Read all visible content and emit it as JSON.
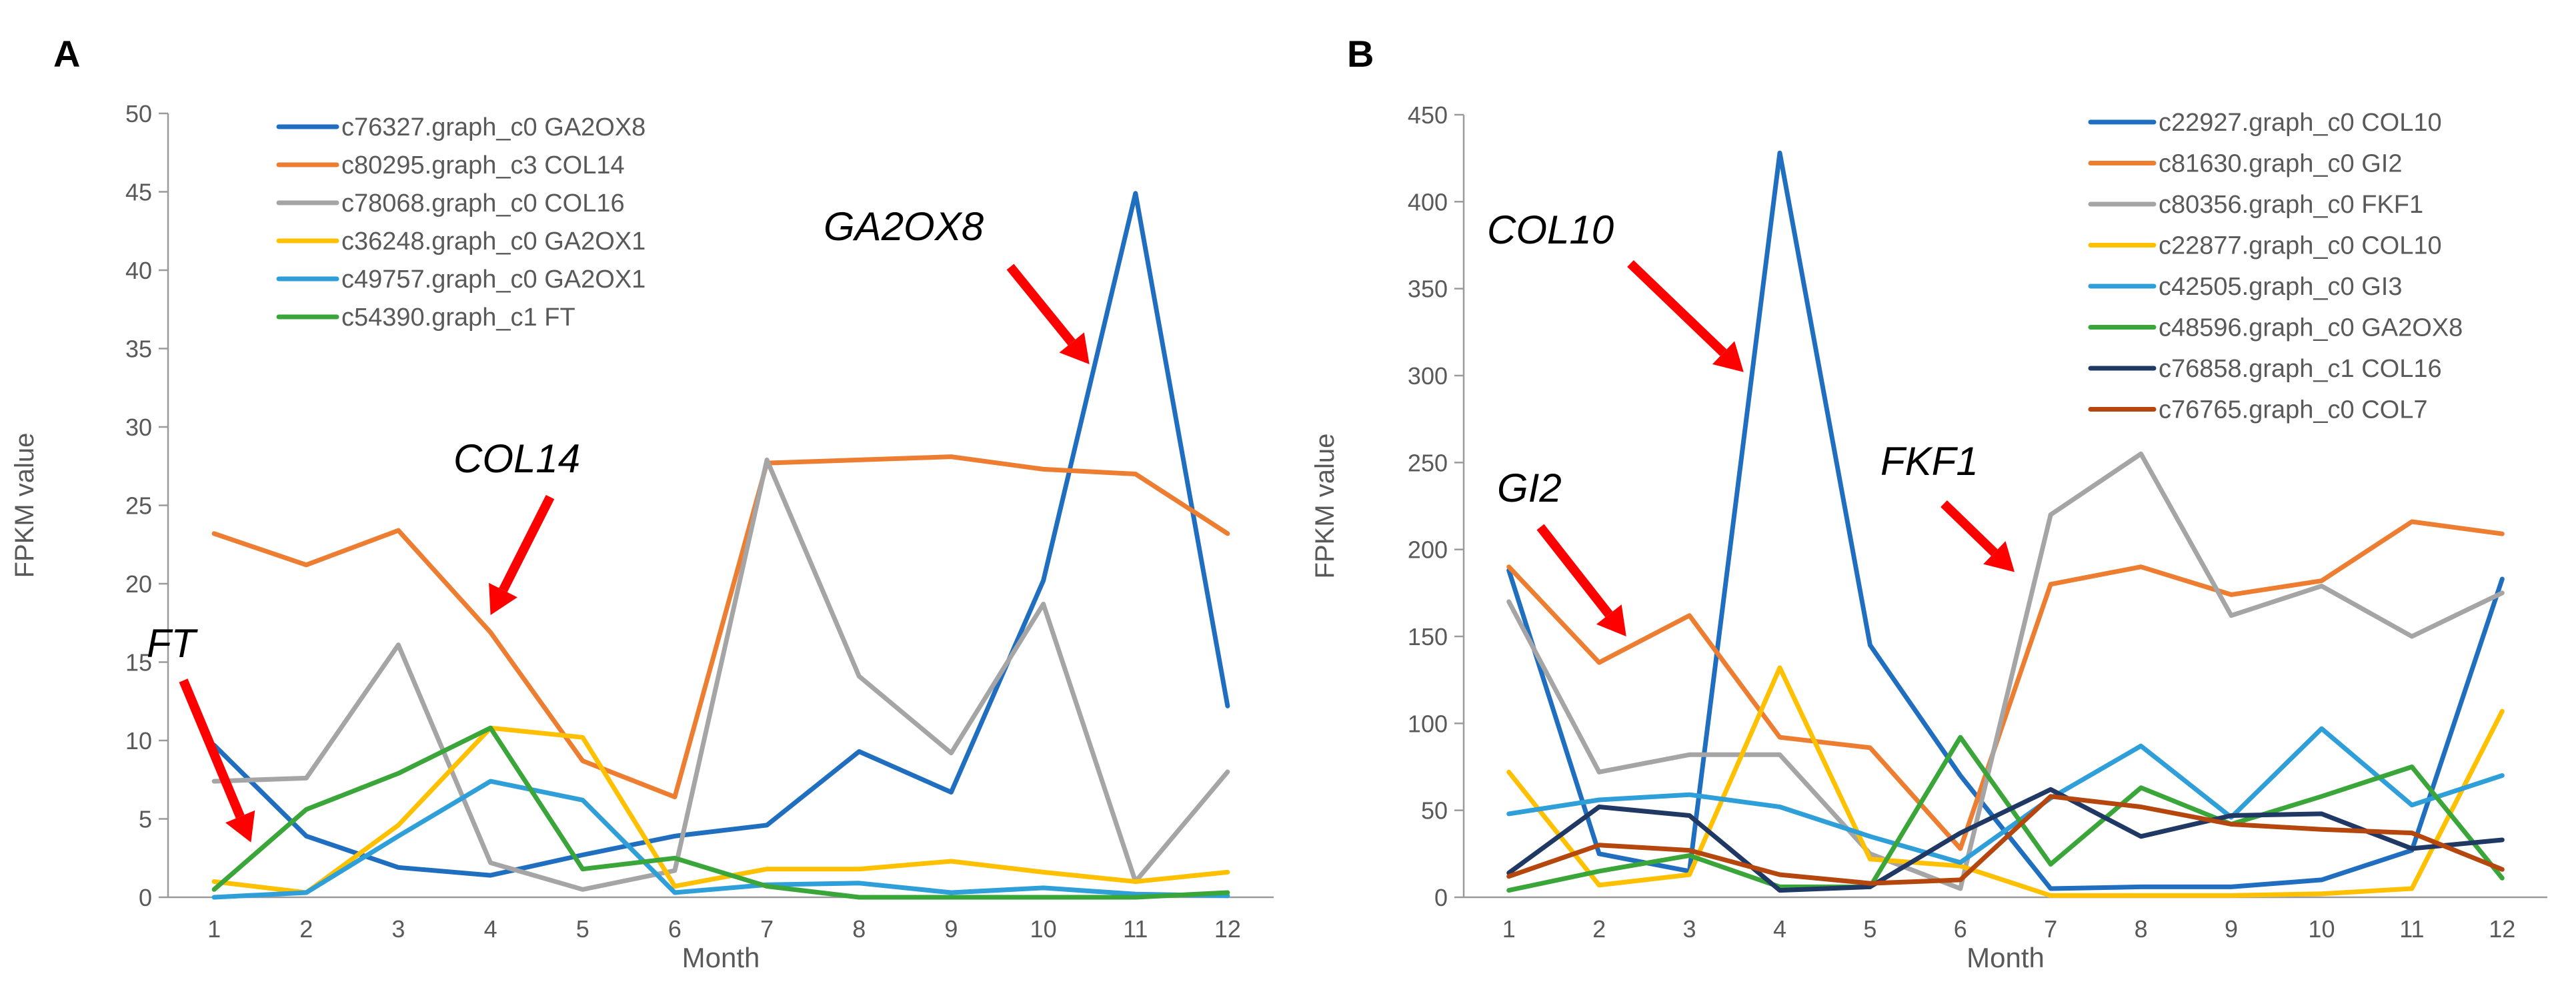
{
  "chart_data": [
    {
      "panel_label": "A",
      "type": "line",
      "xlabel": "Month",
      "ylabel": "FPKM value",
      "categories": [
        1,
        2,
        3,
        4,
        5,
        6,
        7,
        8,
        9,
        10,
        11,
        12
      ],
      "ylim": [
        0,
        50
      ],
      "yticks": [
        0,
        5,
        10,
        15,
        20,
        25,
        30,
        35,
        40,
        45,
        50
      ],
      "grid": false,
      "legend_position": "top-left",
      "series": [
        {
          "name": "c76327.graph_c0 GA2OX8",
          "color": "#1f6ebf",
          "values": [
            9.7,
            3.9,
            1.9,
            1.4,
            2.7,
            3.9,
            4.6,
            9.3,
            6.7,
            20.2,
            44.9,
            12.2
          ]
        },
        {
          "name": "c80295.graph_c3 COL14",
          "color": "#ed7d31",
          "values": [
            23.2,
            21.2,
            23.4,
            16.9,
            8.7,
            6.4,
            27.7,
            27.9,
            28.1,
            27.3,
            27.0,
            23.2
          ]
        },
        {
          "name": "c78068.graph_c0 COL16",
          "color": "#a5a5a5",
          "values": [
            7.4,
            7.6,
            16.1,
            2.2,
            0.5,
            1.7,
            27.9,
            14.1,
            9.2,
            18.7,
            1.0,
            8.0
          ]
        },
        {
          "name": "c36248.graph_c0 GA2OX1",
          "color": "#ffc000",
          "values": [
            1.0,
            0.3,
            4.6,
            10.8,
            10.2,
            0.7,
            1.8,
            1.8,
            2.3,
            1.6,
            1.0,
            1.6
          ]
        },
        {
          "name": "c49757.graph_c0 GA2OX1",
          "color": "#2e9fd8",
          "values": [
            0.0,
            0.3,
            3.9,
            7.4,
            6.2,
            0.3,
            0.8,
            0.9,
            0.3,
            0.6,
            0.2,
            0.1
          ]
        },
        {
          "name": "c54390.graph_c1 FT",
          "color": "#3aa639",
          "values": [
            0.5,
            5.6,
            7.9,
            10.8,
            1.8,
            2.5,
            0.7,
            0.0,
            0.0,
            0.0,
            0.0,
            0.3
          ]
        }
      ],
      "annotations": [
        {
          "text": "GA2OX8",
          "arrow_to": {
            "x": 10.5,
            "y": 34
          }
        },
        {
          "text": "COL14",
          "arrow_to": {
            "x": 4.0,
            "y": 18
          }
        },
        {
          "text": "FT",
          "arrow_to": {
            "x": 1.4,
            "y": 3.5
          }
        }
      ]
    },
    {
      "panel_label": "B",
      "type": "line",
      "xlabel": "Month",
      "ylabel": "FPKM value",
      "categories": [
        1,
        2,
        3,
        4,
        5,
        6,
        7,
        8,
        9,
        10,
        11,
        12
      ],
      "ylim": [
        0,
        450
      ],
      "yticks": [
        0,
        50,
        100,
        150,
        200,
        250,
        300,
        350,
        400,
        450
      ],
      "grid": false,
      "legend_position": "top-right",
      "series": [
        {
          "name": "c22927.graph_c0 COL10",
          "color": "#1f6ebf",
          "values": [
            188,
            25,
            15,
            428,
            145,
            70,
            5,
            6,
            6,
            10,
            27,
            183
          ]
        },
        {
          "name": "c81630.graph_c0 GI2",
          "color": "#ed7d31",
          "values": [
            190,
            135,
            162,
            92,
            86,
            28,
            180,
            190,
            174,
            182,
            216,
            209
          ]
        },
        {
          "name": "c80356.graph_c0 FKF1",
          "color": "#a5a5a5",
          "values": [
            170,
            72,
            82,
            82,
            25,
            5,
            220,
            255,
            162,
            179,
            150,
            175
          ]
        },
        {
          "name": "c22877.graph_c0 COL10",
          "color": "#ffc000",
          "values": [
            72,
            7,
            13,
            132,
            22,
            18,
            1,
            1,
            1,
            2,
            5,
            107
          ]
        },
        {
          "name": "c42505.graph_c0 GI3",
          "color": "#2e9fd8",
          "values": [
            48,
            56,
            59,
            52,
            35,
            20,
            57,
            87,
            46,
            97,
            53,
            70
          ]
        },
        {
          "name": "c48596.graph_c0 GA2OX8",
          "color": "#3aa639",
          "values": [
            4,
            15,
            24,
            6,
            6,
            92,
            19,
            63,
            42,
            58,
            75,
            11
          ]
        },
        {
          "name": "c76858.graph_c1 COL16",
          "color": "#1f3864",
          "values": [
            14,
            52,
            47,
            4,
            6,
            37,
            62,
            35,
            47,
            48,
            28,
            33
          ]
        },
        {
          "name": "c76765.graph_c0 COL7",
          "color": "#b5460d",
          "values": [
            12,
            30,
            27,
            13,
            8,
            10,
            58,
            52,
            42,
            39,
            37,
            16
          ]
        }
      ],
      "annotations": [
        {
          "text": "COL10",
          "arrow_to": {
            "x": 3.6,
            "y": 302
          }
        },
        {
          "text": "GI2",
          "arrow_to": {
            "x": 2.3,
            "y": 150
          }
        },
        {
          "text": "FKF1",
          "arrow_to": {
            "x": 6.6,
            "y": 187
          }
        }
      ]
    }
  ]
}
